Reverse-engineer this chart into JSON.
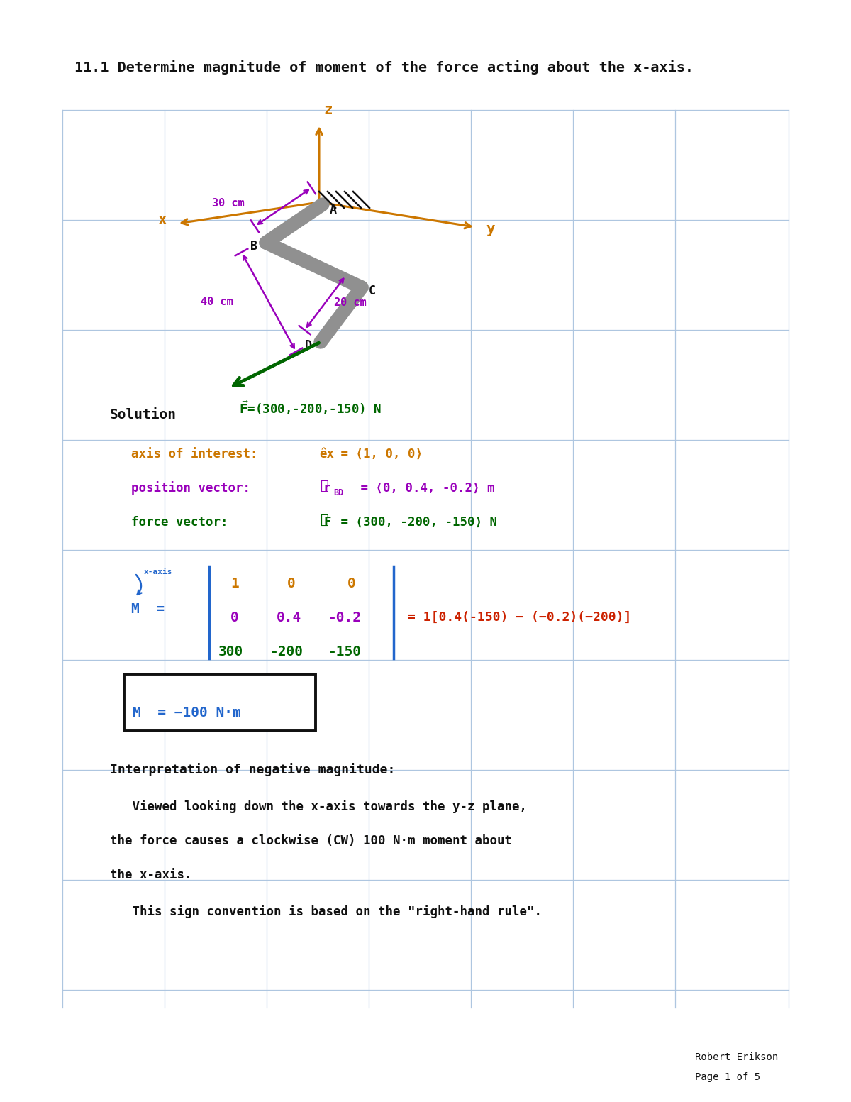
{
  "title": "11.1 Determine magnitude of moment of the force acting about the x-axis.",
  "bg_color": "#ffffff",
  "grid_color": "#aec6e0",
  "orange_color": "#cc7700",
  "purple_color": "#9900bb",
  "green_color": "#006600",
  "blue_color": "#2266cc",
  "red_color": "#cc2200",
  "black_color": "#111111",
  "gray_color": "#888888",
  "footer1": "Robert Erikson",
  "footer2": "Page 1 of 5"
}
